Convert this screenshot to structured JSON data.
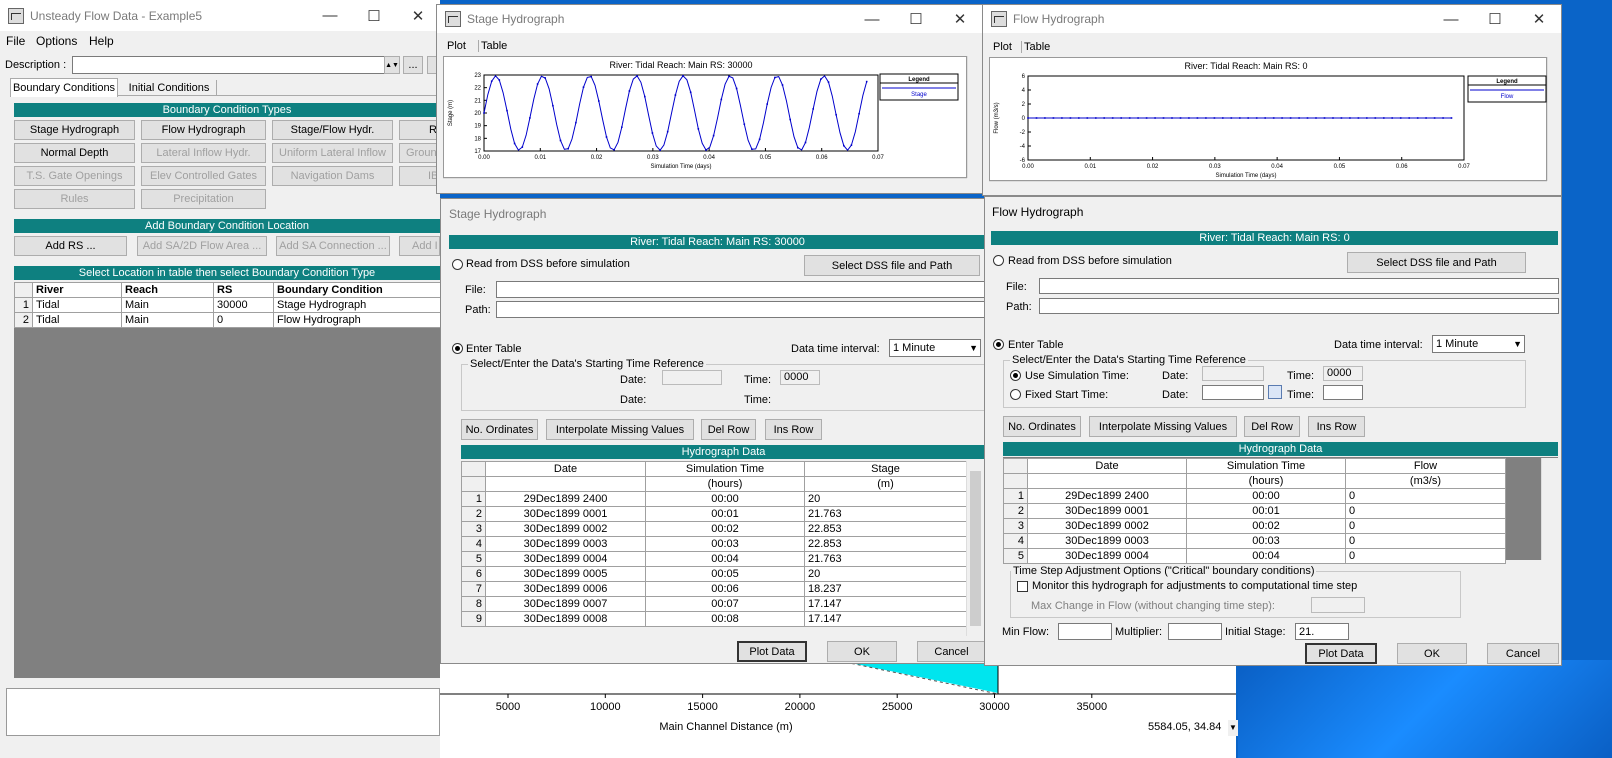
{
  "main_window": {
    "title": "Unsteady Flow Data - Example5",
    "menu": [
      "File",
      "Options",
      "Help"
    ],
    "description_label": "Description :",
    "description_value": "",
    "tabs": [
      "Boundary Conditions",
      "Initial Conditions"
    ],
    "bc_types_header": "Boundary Condition Types",
    "bc_buttons": [
      "Stage Hydrograph",
      "Flow Hydrograph",
      "Stage/Flow Hydr.",
      "R",
      "Normal Depth",
      "Lateral Inflow Hydr.",
      "Uniform Lateral Inflow",
      "Groun",
      "T.S. Gate Openings",
      "Elev Controlled Gates",
      "Navigation Dams",
      "IB",
      "Rules",
      "Precipitation"
    ],
    "add_location_header": "Add Boundary Condition Location",
    "add_buttons": [
      "Add RS ...",
      "Add SA/2D Flow Area ...",
      "Add SA Connection ...",
      "Add I"
    ],
    "select_header": "Select Location in table then select Boundary Condition Type",
    "table_headers": [
      "River",
      "Reach",
      "RS",
      "Boundary Condition"
    ],
    "table_rows": [
      {
        "n": "1",
        "river": "Tidal",
        "reach": "Main",
        "rs": "30000",
        "bc": "Stage Hydrograph"
      },
      {
        "n": "2",
        "river": "Tidal",
        "reach": "Main",
        "rs": "0",
        "bc": "Flow Hydrograph"
      }
    ]
  },
  "background_plot": {
    "x_ticks": [
      "5000",
      "10000",
      "15000",
      "20000",
      "25000",
      "30000",
      "35000"
    ],
    "x_label": "Main Channel Distance (m)",
    "coords": "5584.05, 34.84"
  },
  "stage_plot_window": {
    "title": "Stage Hydrograph",
    "tabs": [
      "Plot",
      "Table"
    ],
    "plot_title": "River: Tidal  Reach: Main  RS: 30000",
    "legend_title": "Legend",
    "legend_item": "Stage",
    "y_label": "Stage (m)",
    "x_label": "Simulation Time (days)",
    "y_ticks": [
      "23",
      "22",
      "21",
      "20",
      "19",
      "18",
      "17"
    ],
    "x_ticks": [
      "0.00",
      "0.01",
      "0.02",
      "0.03",
      "0.04",
      "0.05",
      "0.06",
      "0.07"
    ],
    "line_color": "#0000cc"
  },
  "stage_editor": {
    "title": "Stage Hydrograph",
    "location_header": "River: Tidal  Reach: Main  RS: 30000",
    "read_dss_label": "Read from DSS before simulation",
    "select_dss_button": "Select DSS file and Path",
    "file_label": "File:",
    "path_label": "Path:",
    "enter_table_label": "Enter Table",
    "interval_label": "Data time interval:",
    "interval_value": "1 Minute",
    "time_ref_group": "Select/Enter the Data's Starting Time Reference",
    "date_label": "Date:",
    "time_label": "Time:",
    "time_value": "0000",
    "buttons": [
      "No. Ordinates",
      "Interpolate Missing Values",
      "Del Row",
      "Ins Row"
    ],
    "data_header": "Hydrograph Data",
    "col_headers": [
      "Date",
      "Simulation Time",
      "Stage"
    ],
    "col_units": [
      "",
      "(hours)",
      "(m)"
    ],
    "rows": [
      [
        "1",
        "29Dec1899 2400",
        "00:00",
        "20"
      ],
      [
        "2",
        "30Dec1899 0001",
        "00:01",
        "21.763"
      ],
      [
        "3",
        "30Dec1899 0002",
        "00:02",
        "22.853"
      ],
      [
        "4",
        "30Dec1899 0003",
        "00:03",
        "22.853"
      ],
      [
        "5",
        "30Dec1899 0004",
        "00:04",
        "21.763"
      ],
      [
        "6",
        "30Dec1899 0005",
        "00:05",
        "20"
      ],
      [
        "7",
        "30Dec1899 0006",
        "00:06",
        "18.237"
      ],
      [
        "8",
        "30Dec1899 0007",
        "00:07",
        "17.147"
      ],
      [
        "9",
        "30Dec1899 0008",
        "00:08",
        "17.147"
      ]
    ],
    "plot_button": "Plot Data",
    "ok_button": "OK",
    "cancel_button": "Cancel"
  },
  "flow_plot_window": {
    "title": "Flow Hydrograph",
    "tabs": [
      "Plot",
      "Table"
    ],
    "plot_title": "River: Tidal  Reach: Main  RS: 0",
    "legend_title": "Legend",
    "legend_item": "Flow",
    "y_label": "Flow (m3/s)",
    "x_label": "Simulation Time (days)",
    "y_ticks": [
      "6",
      "4",
      "2",
      "0",
      "-2",
      "-4",
      "-6"
    ],
    "x_ticks": [
      "0.00",
      "0.01",
      "0.02",
      "0.03",
      "0.04",
      "0.05",
      "0.06",
      "0.07"
    ],
    "line_color": "#0000cc"
  },
  "flow_editor": {
    "title": "Flow Hydrograph",
    "location_header": "River: Tidal  Reach: Main  RS: 0",
    "read_dss_label": "Read from DSS before simulation",
    "select_dss_button": "Select DSS file and Path",
    "file_label": "File:",
    "path_label": "Path:",
    "enter_table_label": "Enter Table",
    "interval_label": "Data time interval:",
    "interval_value": "1 Minute",
    "time_ref_group": "Select/Enter the Data's Starting Time Reference",
    "use_sim_label": "Use Simulation Time:",
    "fixed_start_label": "Fixed Start Time:",
    "date_label": "Date:",
    "time_label": "Time:",
    "time_value": "0000",
    "buttons": [
      "No. Ordinates",
      "Interpolate Missing Values",
      "Del Row",
      "Ins Row"
    ],
    "data_header": "Hydrograph Data",
    "col_headers": [
      "Date",
      "Simulation Time",
      "Flow"
    ],
    "col_units": [
      "",
      "(hours)",
      "(m3/s)"
    ],
    "rows": [
      [
        "1",
        "29Dec1899 2400",
        "00:00",
        "0"
      ],
      [
        "2",
        "30Dec1899 0001",
        "00:01",
        "0"
      ],
      [
        "3",
        "30Dec1899 0002",
        "00:02",
        "0"
      ],
      [
        "4",
        "30Dec1899 0003",
        "00:03",
        "0"
      ],
      [
        "5",
        "30Dec1899 0004",
        "00:04",
        "0"
      ]
    ],
    "tsa_group": "Time Step Adjustment Options (\"Critical\" boundary conditions)",
    "monitor_label": "Monitor this hydrograph for adjustments to computational time step",
    "max_change_label": "Max Change in Flow (without changing time step):",
    "min_flow_label": "Min Flow:",
    "multiplier_label": "Multiplier:",
    "initial_stage_label": "Initial Stage:",
    "initial_stage_value": "21.",
    "plot_button": "Plot Data",
    "ok_button": "OK",
    "cancel_button": "Cancel"
  }
}
